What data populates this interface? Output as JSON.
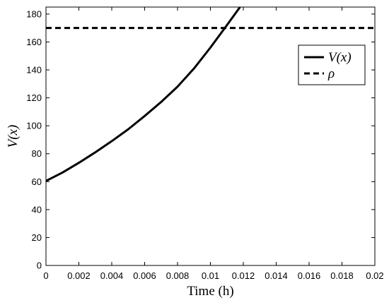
{
  "chart_data": {
    "type": "line",
    "title": "",
    "xlabel": "Time (h)",
    "ylabel": "V(x)",
    "xlim": [
      0,
      0.02
    ],
    "ylim": [
      0,
      185
    ],
    "xticks": [
      0,
      0.002,
      0.004,
      0.006,
      0.008,
      0.01,
      0.012,
      0.014,
      0.016,
      0.018,
      0.02
    ],
    "xtick_labels": [
      "0",
      "0.002",
      "0.004",
      "0.006",
      "0.008",
      "0.01",
      "0.012",
      "0.014",
      "0.016",
      "0.018",
      "0.02"
    ],
    "yticks": [
      0,
      20,
      40,
      60,
      80,
      100,
      120,
      140,
      160,
      180
    ],
    "ytick_labels": [
      "0",
      "20",
      "40",
      "60",
      "80",
      "100",
      "120",
      "140",
      "160",
      "180"
    ],
    "grid": false,
    "legend_position": "top-right",
    "series": [
      {
        "name": "V(x)",
        "style": "solid",
        "color": "#000000",
        "x": [
          0,
          0.001,
          0.002,
          0.003,
          0.004,
          0.005,
          0.006,
          0.007,
          0.008,
          0.009,
          0.01,
          0.011,
          0.0118
        ],
        "y": [
          60.5,
          66.5,
          73.5,
          81,
          89,
          97.5,
          107,
          117,
          128,
          141,
          156,
          172,
          185
        ]
      },
      {
        "name": "ρ",
        "style": "dashed",
        "color": "#000000",
        "x": [
          0,
          0.02
        ],
        "y": [
          170,
          170
        ]
      }
    ]
  }
}
